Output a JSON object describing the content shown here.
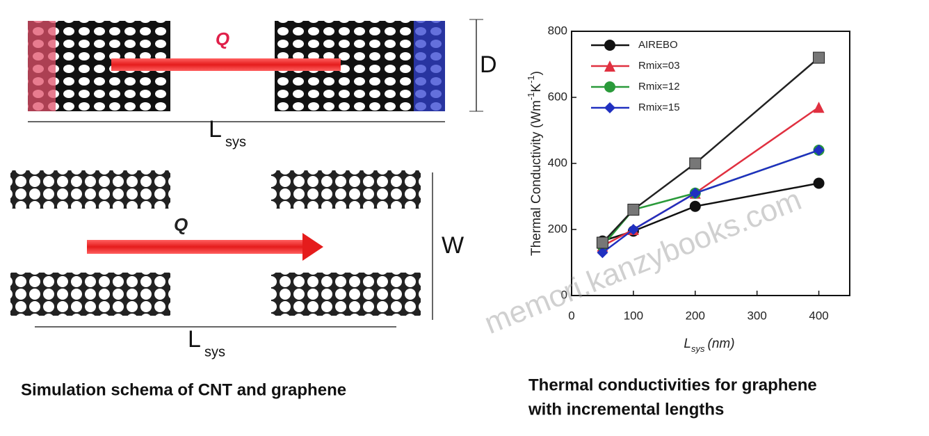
{
  "schematic": {
    "cnt": {
      "heat": "Q",
      "diameter": "D",
      "length": "L",
      "length_sub": "sys"
    },
    "graphene": {
      "heat": "Q",
      "width": "W",
      "length": "L",
      "length_sub": "sys"
    },
    "caption": "Simulation schema of CNT and graphene"
  },
  "watermark": "memori.kanzybooks.com",
  "chart_caption": [
    "Thermal conductivities for graphene",
    "with incremental lengths"
  ],
  "chart_data": {
    "type": "line",
    "y_label": {
      "text": "Thermal Conductivity (Wm",
      "sup1": "-1",
      "mid": "K",
      "sup2": "-1",
      "end": ")"
    },
    "x_label": {
      "main": "L",
      "sub": "sys",
      "unit": "(nm)"
    },
    "x": [
      50,
      100,
      200,
      400
    ],
    "series": [
      {
        "name": "AIREBO",
        "color": "#111111",
        "marker": "circle",
        "values": [
          165,
          195,
          270,
          340
        ]
      },
      {
        "name": "Rmix=03",
        "color": "#e03040",
        "marker": "triangle",
        "values": [
          150,
          200,
          310,
          570
        ]
      },
      {
        "name": "Rmix=12",
        "color": "#2a9a3a",
        "marker": "circle",
        "values": [
          150,
          260,
          310,
          440
        ]
      },
      {
        "name": "Rmix=15",
        "color": "#2030c0",
        "marker": "diamond",
        "values": [
          130,
          200,
          310,
          440
        ]
      },
      {
        "color": "#222222",
        "marker": "square",
        "values": [
          160,
          260,
          400,
          720
        ]
      }
    ],
    "xlim": [
      0,
      450
    ],
    "ylim": [
      0,
      800
    ],
    "xticks": [
      0,
      100,
      200,
      300,
      400
    ],
    "yticks": [
      0,
      200,
      400,
      600,
      800
    ]
  }
}
